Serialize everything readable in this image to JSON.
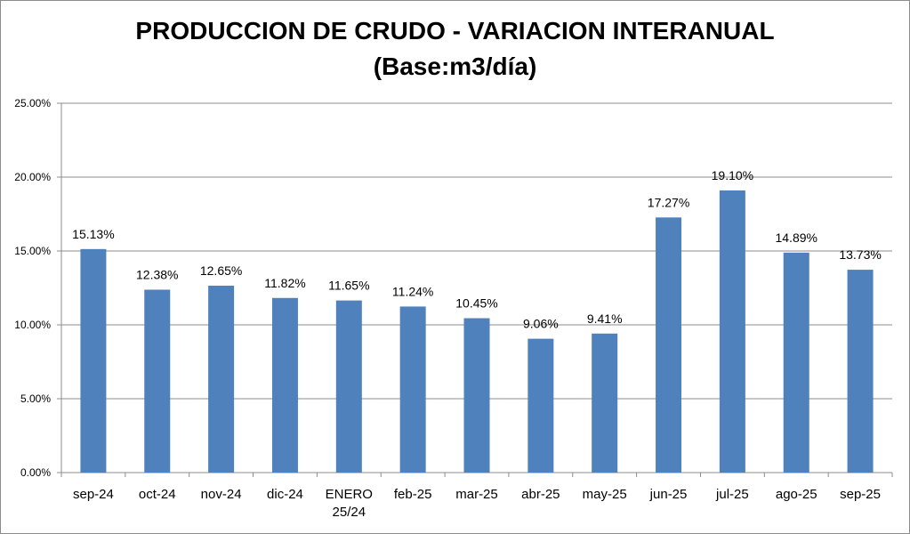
{
  "chart_data": {
    "type": "bar",
    "title": "PRODUCCION DE CRUDO - VARIACION INTERANUAL",
    "subtitle": "(Base:m3/día)",
    "categories": [
      "sep-24",
      "oct-24",
      "nov-24",
      "dic-24",
      "ENERO\n25/24",
      "feb-25",
      "mar-25",
      "abr-25",
      "may-25",
      "jun-25",
      "jul-25",
      "ago-25",
      "sep-25"
    ],
    "values": [
      15.13,
      12.38,
      12.65,
      11.82,
      11.65,
      11.24,
      10.45,
      9.06,
      9.41,
      17.27,
      19.1,
      14.89,
      13.73
    ],
    "data_labels": [
      "15.13%",
      "12.38%",
      "12.65%",
      "11.82%",
      "11.65%",
      "11.24%",
      "10.45%",
      "9.06%",
      "9.41%",
      "17.27%",
      "19.10%",
      "14.89%",
      "13.73%"
    ],
    "ylim": [
      0,
      25
    ],
    "yticks": [
      0,
      5,
      10,
      15,
      20,
      25
    ],
    "ytick_labels": [
      "0.00%",
      "5.00%",
      "10.00%",
      "15.00%",
      "20.00%",
      "25.00%"
    ],
    "grid": true,
    "legend": "none",
    "colors": {
      "bar": "#4F81BD",
      "grid": "#8c8c8c",
      "axis": "#8c8c8c"
    }
  }
}
